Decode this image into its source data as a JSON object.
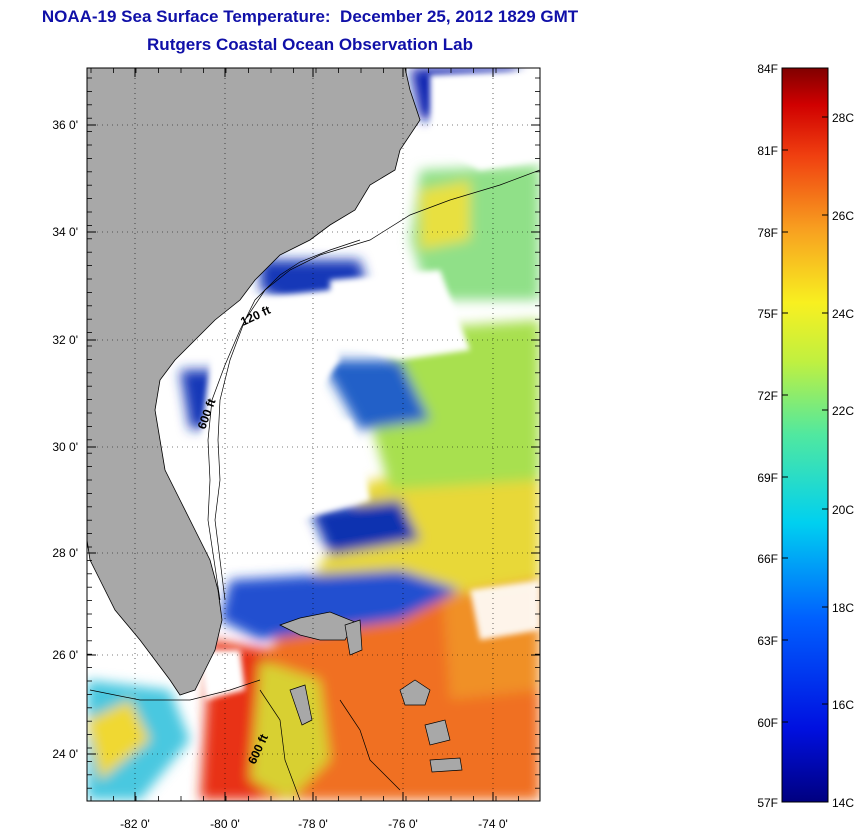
{
  "title_line1": "NOAA-19 Sea Surface Temperature:  December 25, 2012 1829 GMT",
  "title_line2": "Rutgers Coastal Ocean Observation Lab",
  "map": {
    "lat_labels": [
      "36 0'",
      "34 0'",
      "32 0'",
      "30 0'",
      "28 0'",
      "26 0'",
      "24 0'"
    ],
    "lon_labels": [
      "-82 0'",
      "-80 0'",
      "-78 0'",
      "-76 0'",
      "-74 0'"
    ],
    "contour_labels": [
      "120 ft",
      "600 ft",
      "600 ft"
    ],
    "land_color": "#a8a8a8",
    "cloud_color": "#ffffff"
  },
  "colorbar": {
    "fahrenheit_labels": [
      "84F",
      "81F",
      "78F",
      "75F",
      "72F",
      "69F",
      "66F",
      "63F",
      "60F",
      "57F"
    ],
    "celsius_labels": [
      "28C",
      "26C",
      "24C",
      "22C",
      "20C",
      "18C",
      "16C",
      "14C"
    ],
    "range_celsius": [
      14,
      29
    ]
  }
}
